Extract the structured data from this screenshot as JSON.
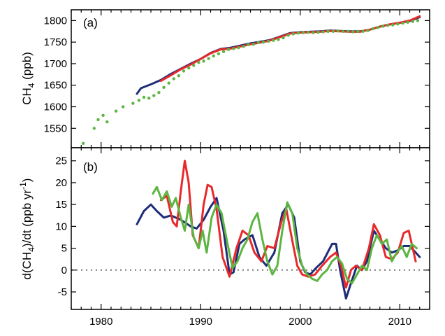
{
  "chart_data": [
    {
      "type": "scatter",
      "panel_label": "(a)",
      "ylabel": "CH4 (ppb)",
      "ylabel_parts": {
        "main": "CH",
        "sub": "4",
        "tail": " (ppb)"
      },
      "xlim": [
        1977,
        2013
      ],
      "ylim": [
        1505,
        1825
      ],
      "yticks": [
        1550,
        1600,
        1650,
        1700,
        1750,
        1800
      ],
      "xticks": [
        1980,
        1990,
        2000,
        2010
      ],
      "show_x_tick_labels": false,
      "colors": {
        "navy": "#1f2d78",
        "red": "#e8292a",
        "green": "#5cb541"
      },
      "series": [
        {
          "style": "line",
          "color": "#1f2d78",
          "x": [
            1983.6,
            1984,
            1985,
            1986,
            1987,
            1988,
            1989,
            1990,
            1991,
            1992,
            1993,
            1994,
            1995,
            1996,
            1997,
            1998,
            1999,
            2000,
            2001,
            2002,
            2003,
            2004,
            2005,
            2006,
            2007,
            2008,
            2009,
            2010,
            2011,
            2012
          ],
          "y": [
            1630,
            1643,
            1652,
            1662,
            1676,
            1688,
            1700,
            1711,
            1725,
            1734,
            1737,
            1742,
            1747,
            1751,
            1755,
            1763,
            1771,
            1773,
            1774,
            1775,
            1777,
            1776,
            1775,
            1775,
            1779,
            1786,
            1791,
            1795,
            1799,
            1808
          ]
        },
        {
          "style": "line",
          "color": "#e8292a",
          "x": [
            1986,
            1987,
            1988,
            1989,
            1990,
            1991,
            1992,
            1993,
            1994,
            1995,
            1996,
            1997,
            1998,
            1999,
            2000,
            2001,
            2002,
            2003,
            2004,
            2005,
            2006,
            2007,
            2008,
            2009,
            2010,
            2011,
            2012
          ],
          "y": [
            1660,
            1673,
            1687,
            1698,
            1711,
            1724,
            1733,
            1735,
            1740,
            1745,
            1749,
            1754,
            1762,
            1770,
            1772,
            1773,
            1774,
            1776,
            1775,
            1774,
            1774,
            1779,
            1786,
            1791,
            1795,
            1800,
            1810
          ]
        },
        {
          "style": "dots",
          "color": "#5cb541",
          "x": [
            1978.2,
            1979.3,
            1979.7,
            1980.2,
            1980.6,
            1981.5,
            1982.2,
            1983.2,
            1983.8,
            1984.3,
            1984.8,
            1985.3,
            1985.8,
            1986.3,
            1986.8,
            1987.3,
            1987.8,
            1988.3,
            1988.8,
            1989.3,
            1989.8,
            1990.3,
            1990.8,
            1991.3,
            1991.8,
            1992.3,
            1992.8,
            1993.3,
            1993.8,
            1994.3,
            1994.8,
            1995.3,
            1995.8,
            1996.3,
            1996.8,
            1997.3,
            1997.8,
            1998.3,
            1998.8,
            1999.3,
            1999.8,
            2000.3,
            2000.8,
            2001.3,
            2001.8,
            2002.3,
            2002.8,
            2003.3,
            2003.8,
            2004.3,
            2004.8,
            2005.3,
            2005.8,
            2006.3,
            2006.8,
            2007.3,
            2007.8,
            2008.3,
            2008.8,
            2009.3,
            2009.8,
            2010.3,
            2010.8,
            2011.3,
            2011.8
          ],
          "y": [
            1515,
            1550,
            1570,
            1580,
            1565,
            1590,
            1600,
            1608,
            1615,
            1622,
            1620,
            1626,
            1633,
            1645,
            1655,
            1665,
            1672,
            1683,
            1690,
            1696,
            1703,
            1706,
            1712,
            1718,
            1723,
            1728,
            1733,
            1735,
            1737,
            1740,
            1744,
            1745,
            1749,
            1750,
            1752,
            1754,
            1756,
            1760,
            1766,
            1769,
            1771,
            1772,
            1773,
            1772,
            1773,
            1774,
            1775,
            1775,
            1776,
            1775,
            1775,
            1774,
            1775,
            1775,
            1777,
            1781,
            1784,
            1787,
            1789,
            1790,
            1792,
            1794,
            1796,
            1798,
            1800
          ]
        }
      ]
    },
    {
      "type": "line",
      "panel_label": "(b)",
      "ylabel": "d(CH4)/dt (ppb yr-1)",
      "ylabel_parts": {
        "a": "d(CH",
        "sub": "4",
        "b": ")/dt (ppb yr",
        "sup": "-1",
        "c": ")"
      },
      "xlim": [
        1977,
        2013
      ],
      "ylim": [
        -9,
        28
      ],
      "yticks": [
        -5,
        0,
        5,
        10,
        15,
        20,
        25
      ],
      "xticks": [
        1980,
        1990,
        2000,
        2010
      ],
      "xtick_labels": [
        "1980",
        "1990",
        "2000",
        "2010"
      ],
      "zero_line": "dotted",
      "series": [
        {
          "color": "#1f2d78",
          "x": [
            1983.6,
            1984.3,
            1985,
            1985.6,
            1986.3,
            1987,
            1988,
            1989,
            1989.6,
            1990.3,
            1991,
            1991.6,
            1992.3,
            1992.9,
            1993.3,
            1993.9,
            1994.4,
            1995.2,
            1995.9,
            1996.6,
            1997.4,
            1998.2,
            1998.8,
            1999.4,
            2000,
            2000.5,
            2001,
            2001.6,
            2002.3,
            2003.2,
            2003.6,
            2004,
            2004.6,
            2005.1,
            2005.7,
            2006.2,
            2006.7,
            2007.4,
            2008,
            2008.6,
            2009.2,
            2009.8,
            2010.4,
            2011,
            2011.6,
            2012
          ],
          "y": [
            10.5,
            13.5,
            15,
            13.5,
            12,
            12.5,
            11.5,
            10,
            9.5,
            11.5,
            14.5,
            16.5,
            9,
            -1,
            -0.5,
            6,
            7,
            8,
            3,
            1,
            4,
            13,
            15,
            12,
            2,
            -0.5,
            -1,
            0.5,
            2,
            6,
            6,
            0,
            -6.5,
            -3,
            1,
            0,
            2,
            9,
            7,
            5,
            4,
            4.5,
            5.5,
            5.5,
            4,
            3
          ]
        },
        {
          "color": "#e8292a",
          "x": [
            1986,
            1986.6,
            1987.2,
            1987.6,
            1988,
            1988.4,
            1988.8,
            1989.2,
            1989.8,
            1990.3,
            1990.7,
            1991.1,
            1991.6,
            1992.2,
            1992.9,
            1993.6,
            1994.2,
            1994.8,
            1995.4,
            1996.1,
            1996.7,
            1997.4,
            1998.1,
            1998.6,
            1999.1,
            1999.7,
            2000.2,
            2000.8,
            2001.5,
            2002.2,
            2003,
            2003.6,
            2004.1,
            2004.6,
            2005.1,
            2005.6,
            2006.2,
            2006.9,
            2007.4,
            2008,
            2008.6,
            2009.2,
            2009.8,
            2010.4,
            2010.9,
            2011.3,
            2011.6
          ],
          "y": [
            16,
            17,
            11,
            10,
            18,
            25,
            20,
            8,
            5,
            15,
            19.5,
            19,
            14,
            3,
            -1.5,
            5,
            9,
            8,
            4,
            2,
            5.5,
            5,
            11,
            14,
            8,
            1,
            -1,
            -1.5,
            -1,
            1,
            3,
            4,
            1,
            -4,
            0,
            1,
            0,
            5,
            10.5,
            8,
            3,
            2.5,
            4,
            8.5,
            9,
            5,
            2
          ]
        },
        {
          "color": "#5cb541",
          "x": [
            1985.2,
            1985.6,
            1986.1,
            1986.6,
            1987.1,
            1987.5,
            1988,
            1988.4,
            1988.8,
            1989.3,
            1989.8,
            1990.2,
            1990.6,
            1991.1,
            1991.6,
            1992.1,
            1992.7,
            1993.2,
            1993.7,
            1994.2,
            1994.7,
            1995.2,
            1995.7,
            1996.2,
            1996.7,
            1997.2,
            1997.7,
            1998.2,
            1998.7,
            1999.2,
            1999.7,
            2000.2,
            2000.7,
            2001.2,
            2001.7,
            2002.2,
            2002.7,
            2003.2,
            2003.7,
            2004.2,
            2004.7,
            2005.2,
            2005.7,
            2006.2,
            2006.7,
            2007.2,
            2007.7,
            2008.2,
            2008.7,
            2009.2,
            2009.7,
            2010.2,
            2010.7,
            2011.2,
            2011.7
          ],
          "y": [
            17.5,
            19,
            16,
            18,
            14.5,
            16.5,
            12,
            9,
            15,
            7.5,
            5,
            9,
            4,
            12,
            15,
            13,
            6,
            0.5,
            2,
            5,
            7,
            11,
            13,
            7,
            2,
            -1,
            1,
            9,
            15.5,
            13,
            5,
            1,
            -1,
            -2,
            -2.5,
            -1,
            0,
            2,
            3,
            1.5,
            -2,
            -3,
            -1,
            1,
            0,
            5,
            8,
            6,
            7,
            2,
            4,
            5.5,
            3,
            6,
            5
          ]
        }
      ]
    }
  ]
}
